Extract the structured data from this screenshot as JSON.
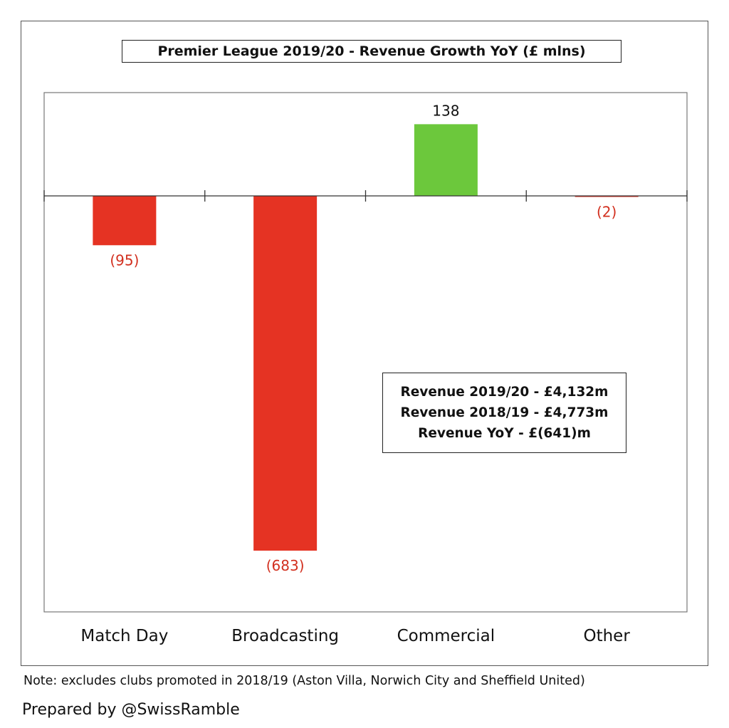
{
  "chart_data": {
    "type": "bar",
    "title": "Premier League 2019/20 - Revenue Growth YoY (£ mlns)",
    "categories": [
      "Match Day",
      "Broadcasting",
      "Commercial",
      "Other"
    ],
    "values": [
      -95,
      -683,
      138,
      -2
    ],
    "value_labels": [
      "(95)",
      "(683)",
      "138",
      "(2)"
    ],
    "ylim": [
      -800,
      200
    ],
    "grid": false,
    "colors": {
      "positive": "#6cc83c",
      "negative": "#e53323",
      "negative_label": "#d2301f",
      "positive_label": "#111111"
    }
  },
  "summary": {
    "lines": [
      "Revenue 2019/20 - £4,132m",
      "Revenue 2018/19 - £4,773m",
      "Revenue YoY - £(641)m"
    ]
  },
  "footer": {
    "note": "Note: excludes clubs promoted in 2018/19 (Aston Villa, Norwich City and Sheffield United)",
    "credit": "Prepared by @SwissRamble"
  }
}
